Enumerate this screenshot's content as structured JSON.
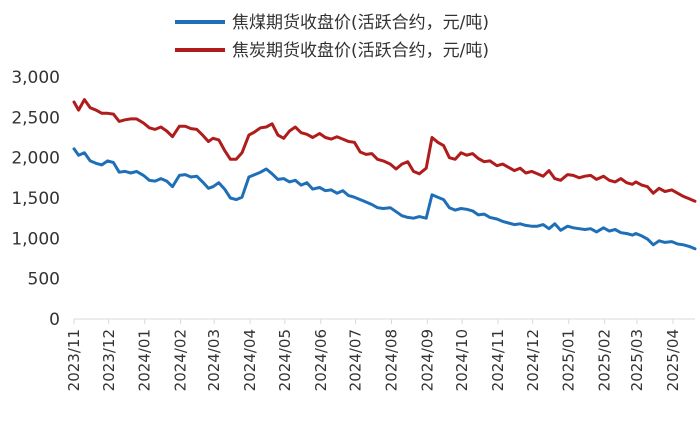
{
  "chart_data": {
    "type": "line",
    "legend_position": "top",
    "grid": false,
    "ylim": [
      0,
      3000
    ],
    "y_ticks": [
      "0",
      "500",
      "1,000",
      "1,500",
      "2,000",
      "2,500",
      "3,000"
    ],
    "y_tick_values": [
      0,
      500,
      1000,
      1500,
      2000,
      2500,
      3000
    ],
    "x_ticks": [
      "2023/11",
      "2023/12",
      "2024/01",
      "2024/02",
      "2024/03",
      "2024/04",
      "2024/05",
      "2024/06",
      "2024/07",
      "2024/08",
      "2024/09",
      "2024/10",
      "2024/11",
      "2024/12",
      "2025/01",
      "2025/02",
      "2025/03",
      "2025/04"
    ],
    "x_end": "2025/04/20",
    "series": [
      {
        "name": "焦煤期货收盘价(活跃合约，元/吨)",
        "color": "#1F6FB8",
        "points": [
          [
            "2023/11/01",
            2110
          ],
          [
            "2023/11/05",
            2030
          ],
          [
            "2023/11/10",
            2060
          ],
          [
            "2023/11/15",
            1960
          ],
          [
            "2023/11/20",
            1930
          ],
          [
            "2023/11/25",
            1910
          ],
          [
            "2023/11/30",
            1960
          ],
          [
            "2023/12/05",
            1940
          ],
          [
            "2023/12/10",
            1820
          ],
          [
            "2023/12/15",
            1830
          ],
          [
            "2023/12/20",
            1810
          ],
          [
            "2023/12/25",
            1830
          ],
          [
            "2023/12/31",
            1780
          ],
          [
            "2024/01/05",
            1720
          ],
          [
            "2024/01/10",
            1710
          ],
          [
            "2024/01/15",
            1740
          ],
          [
            "2024/01/20",
            1710
          ],
          [
            "2024/01/25",
            1640
          ],
          [
            "2024/01/31",
            1780
          ],
          [
            "2024/02/05",
            1790
          ],
          [
            "2024/02/10",
            1760
          ],
          [
            "2024/02/15",
            1770
          ],
          [
            "2024/02/20",
            1700
          ],
          [
            "2024/02/25",
            1620
          ],
          [
            "2024/02/29",
            1640
          ],
          [
            "2024/03/05",
            1690
          ],
          [
            "2024/03/10",
            1610
          ],
          [
            "2024/03/15",
            1500
          ],
          [
            "2024/03/20",
            1480
          ],
          [
            "2024/03/25",
            1510
          ],
          [
            "2024/03/31",
            1760
          ],
          [
            "2024/04/05",
            1790
          ],
          [
            "2024/04/10",
            1820
          ],
          [
            "2024/04/15",
            1860
          ],
          [
            "2024/04/20",
            1800
          ],
          [
            "2024/04/25",
            1730
          ],
          [
            "2024/04/30",
            1740
          ],
          [
            "2024/05/05",
            1700
          ],
          [
            "2024/05/10",
            1720
          ],
          [
            "2024/05/15",
            1660
          ],
          [
            "2024/05/20",
            1690
          ],
          [
            "2024/05/25",
            1610
          ],
          [
            "2024/05/31",
            1630
          ],
          [
            "2024/06/05",
            1590
          ],
          [
            "2024/06/10",
            1600
          ],
          [
            "2024/06/15",
            1560
          ],
          [
            "2024/06/20",
            1590
          ],
          [
            "2024/06/25",
            1530
          ],
          [
            "2024/06/30",
            1510
          ],
          [
            "2024/07/05",
            1480
          ],
          [
            "2024/07/10",
            1450
          ],
          [
            "2024/07/15",
            1420
          ],
          [
            "2024/07/20",
            1380
          ],
          [
            "2024/07/25",
            1370
          ],
          [
            "2024/07/31",
            1380
          ],
          [
            "2024/08/05",
            1330
          ],
          [
            "2024/08/10",
            1280
          ],
          [
            "2024/08/15",
            1260
          ],
          [
            "2024/08/20",
            1250
          ],
          [
            "2024/08/25",
            1270
          ],
          [
            "2024/08/31",
            1250
          ],
          [
            "2024/09/05",
            1540
          ],
          [
            "2024/09/10",
            1510
          ],
          [
            "2024/09/15",
            1480
          ],
          [
            "2024/09/20",
            1380
          ],
          [
            "2024/09/25",
            1350
          ],
          [
            "2024/09/30",
            1370
          ],
          [
            "2024/10/05",
            1360
          ],
          [
            "2024/10/10",
            1340
          ],
          [
            "2024/10/15",
            1290
          ],
          [
            "2024/10/20",
            1300
          ],
          [
            "2024/10/25",
            1260
          ],
          [
            "2024/10/31",
            1240
          ],
          [
            "2024/11/05",
            1210
          ],
          [
            "2024/11/10",
            1190
          ],
          [
            "2024/11/15",
            1170
          ],
          [
            "2024/11/20",
            1180
          ],
          [
            "2024/11/25",
            1160
          ],
          [
            "2024/11/30",
            1150
          ],
          [
            "2024/12/05",
            1150
          ],
          [
            "2024/12/10",
            1170
          ],
          [
            "2024/12/15",
            1120
          ],
          [
            "2024/12/20",
            1180
          ],
          [
            "2024/12/25",
            1100
          ],
          [
            "2024/12/31",
            1150
          ],
          [
            "2025/01/05",
            1130
          ],
          [
            "2025/01/10",
            1120
          ],
          [
            "2025/01/15",
            1110
          ],
          [
            "2025/01/20",
            1120
          ],
          [
            "2025/01/25",
            1080
          ],
          [
            "2025/01/31",
            1130
          ],
          [
            "2025/02/05",
            1090
          ],
          [
            "2025/02/10",
            1110
          ],
          [
            "2025/02/15",
            1070
          ],
          [
            "2025/02/20",
            1060
          ],
          [
            "2025/02/25",
            1040
          ],
          [
            "2025/02/28",
            1060
          ],
          [
            "2025/03/05",
            1030
          ],
          [
            "2025/03/10",
            990
          ],
          [
            "2025/03/15",
            920
          ],
          [
            "2025/03/20",
            970
          ],
          [
            "2025/03/25",
            950
          ],
          [
            "2025/03/31",
            960
          ],
          [
            "2025/04/05",
            930
          ],
          [
            "2025/04/10",
            920
          ],
          [
            "2025/04/15",
            900
          ],
          [
            "2025/04/20",
            870
          ]
        ]
      },
      {
        "name": "焦炭期货收盘价(活跃合约，元/吨)",
        "color": "#B01C1C",
        "points": [
          [
            "2023/11/01",
            2690
          ],
          [
            "2023/11/05",
            2590
          ],
          [
            "2023/11/10",
            2720
          ],
          [
            "2023/11/15",
            2620
          ],
          [
            "2023/11/20",
            2590
          ],
          [
            "2023/11/25",
            2550
          ],
          [
            "2023/11/30",
            2550
          ],
          [
            "2023/12/05",
            2540
          ],
          [
            "2023/12/10",
            2450
          ],
          [
            "2023/12/15",
            2470
          ],
          [
            "2023/12/20",
            2480
          ],
          [
            "2023/12/25",
            2480
          ],
          [
            "2023/12/31",
            2430
          ],
          [
            "2024/01/05",
            2370
          ],
          [
            "2024/01/10",
            2350
          ],
          [
            "2024/01/15",
            2380
          ],
          [
            "2024/01/20",
            2330
          ],
          [
            "2024/01/25",
            2260
          ],
          [
            "2024/01/31",
            2390
          ],
          [
            "2024/02/05",
            2390
          ],
          [
            "2024/02/10",
            2360
          ],
          [
            "2024/02/15",
            2350
          ],
          [
            "2024/02/20",
            2280
          ],
          [
            "2024/02/25",
            2200
          ],
          [
            "2024/02/29",
            2240
          ],
          [
            "2024/03/05",
            2220
          ],
          [
            "2024/03/10",
            2090
          ],
          [
            "2024/03/15",
            1980
          ],
          [
            "2024/03/20",
            1980
          ],
          [
            "2024/03/25",
            2060
          ],
          [
            "2024/03/31",
            2280
          ],
          [
            "2024/04/05",
            2320
          ],
          [
            "2024/04/10",
            2370
          ],
          [
            "2024/04/15",
            2380
          ],
          [
            "2024/04/20",
            2420
          ],
          [
            "2024/04/25",
            2280
          ],
          [
            "2024/04/30",
            2240
          ],
          [
            "2024/05/05",
            2330
          ],
          [
            "2024/05/10",
            2380
          ],
          [
            "2024/05/15",
            2310
          ],
          [
            "2024/05/20",
            2290
          ],
          [
            "2024/05/25",
            2250
          ],
          [
            "2024/05/31",
            2300
          ],
          [
            "2024/06/05",
            2250
          ],
          [
            "2024/06/10",
            2230
          ],
          [
            "2024/06/15",
            2260
          ],
          [
            "2024/06/20",
            2230
          ],
          [
            "2024/06/25",
            2200
          ],
          [
            "2024/06/30",
            2190
          ],
          [
            "2024/07/05",
            2070
          ],
          [
            "2024/07/10",
            2040
          ],
          [
            "2024/07/15",
            2050
          ],
          [
            "2024/07/20",
            1980
          ],
          [
            "2024/07/25",
            1960
          ],
          [
            "2024/07/31",
            1920
          ],
          [
            "2024/08/05",
            1860
          ],
          [
            "2024/08/10",
            1920
          ],
          [
            "2024/08/15",
            1950
          ],
          [
            "2024/08/20",
            1830
          ],
          [
            "2024/08/25",
            1800
          ],
          [
            "2024/08/31",
            1870
          ],
          [
            "2024/09/05",
            2250
          ],
          [
            "2024/09/10",
            2190
          ],
          [
            "2024/09/15",
            2150
          ],
          [
            "2024/09/20",
            2000
          ],
          [
            "2024/09/25",
            1980
          ],
          [
            "2024/09/30",
            2060
          ],
          [
            "2024/10/05",
            2030
          ],
          [
            "2024/10/10",
            2050
          ],
          [
            "2024/10/15",
            1990
          ],
          [
            "2024/10/20",
            1950
          ],
          [
            "2024/10/25",
            1960
          ],
          [
            "2024/10/31",
            1900
          ],
          [
            "2024/11/05",
            1920
          ],
          [
            "2024/11/10",
            1880
          ],
          [
            "2024/11/15",
            1840
          ],
          [
            "2024/11/20",
            1870
          ],
          [
            "2024/11/25",
            1810
          ],
          [
            "2024/11/30",
            1830
          ],
          [
            "2024/12/05",
            1800
          ],
          [
            "2024/12/10",
            1770
          ],
          [
            "2024/12/15",
            1840
          ],
          [
            "2024/12/20",
            1740
          ],
          [
            "2024/12/25",
            1720
          ],
          [
            "2024/12/31",
            1790
          ],
          [
            "2025/01/05",
            1780
          ],
          [
            "2025/01/10",
            1750
          ],
          [
            "2025/01/15",
            1770
          ],
          [
            "2025/01/20",
            1780
          ],
          [
            "2025/01/25",
            1730
          ],
          [
            "2025/01/31",
            1770
          ],
          [
            "2025/02/05",
            1720
          ],
          [
            "2025/02/10",
            1700
          ],
          [
            "2025/02/15",
            1740
          ],
          [
            "2025/02/20",
            1690
          ],
          [
            "2025/02/25",
            1670
          ],
          [
            "2025/02/28",
            1700
          ],
          [
            "2025/03/05",
            1660
          ],
          [
            "2025/03/10",
            1640
          ],
          [
            "2025/03/15",
            1560
          ],
          [
            "2025/03/20",
            1620
          ],
          [
            "2025/03/25",
            1580
          ],
          [
            "2025/03/31",
            1600
          ],
          [
            "2025/04/05",
            1560
          ],
          [
            "2025/04/10",
            1520
          ],
          [
            "2025/04/15",
            1490
          ],
          [
            "2025/04/20",
            1460
          ]
        ]
      }
    ]
  }
}
